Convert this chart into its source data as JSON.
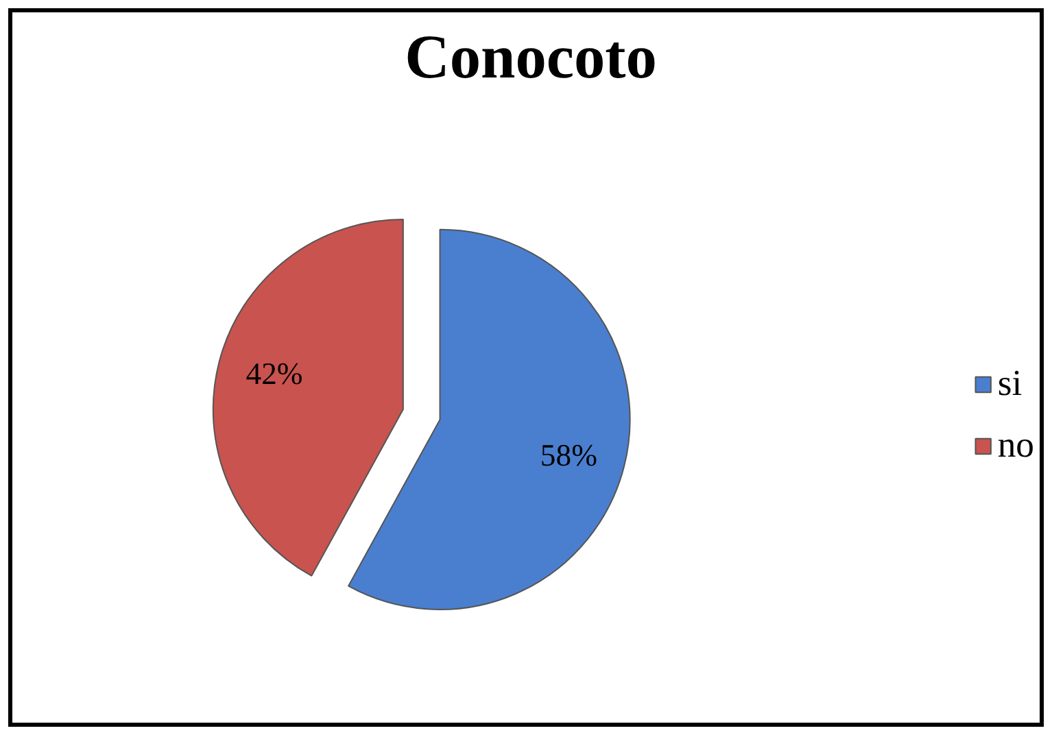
{
  "chart_data": {
    "type": "pie",
    "title": "Conocoto",
    "categories": [
      "si",
      "no"
    ],
    "values": [
      58,
      42
    ],
    "colors": [
      "#4a7fd0",
      "#c9534f"
    ],
    "value_labels": [
      "58%",
      "42%"
    ],
    "legend": "right"
  }
}
